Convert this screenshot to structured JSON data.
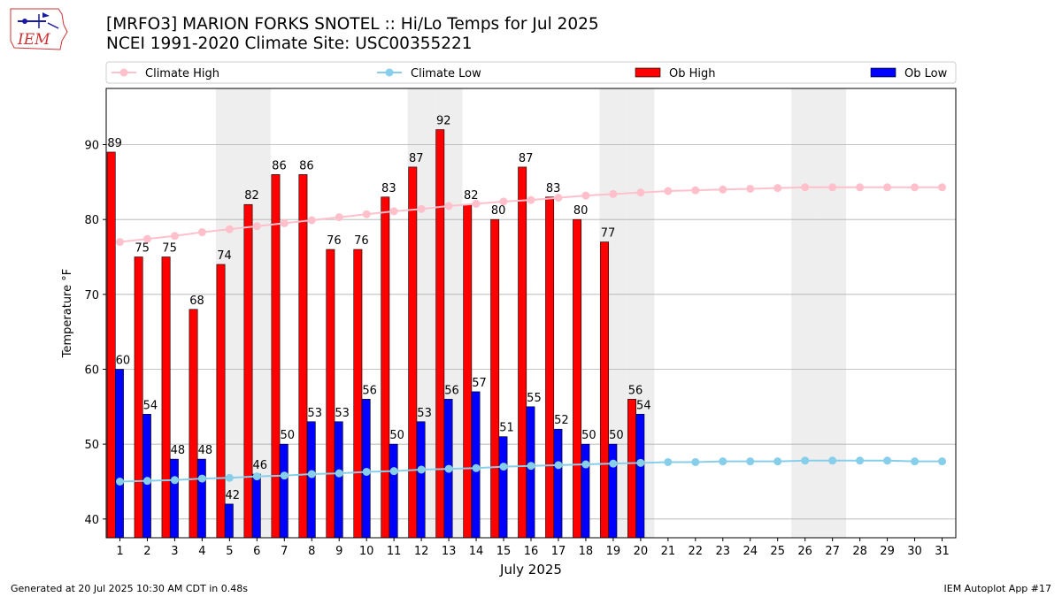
{
  "header": {
    "title_line1": "[MRFO3] MARION FORKS SNOTEL :: Hi/Lo Temps for Jul 2025",
    "title_line2": "NCEI 1991-2020 Climate Site: USC00355221",
    "logo_text": "IEM"
  },
  "footer": {
    "generated": "Generated at 20 Jul 2025 10:30 AM CDT in 0.48s",
    "app": "IEM Autoplot App #17"
  },
  "colors": {
    "ob_high": "#ff0000",
    "ob_low": "#0000ff",
    "climate_high": "#ffc0cb",
    "climate_low": "#87ceeb",
    "weekend_shade": "#eeeeee",
    "grid": "#b0b0b0"
  },
  "chart_data": {
    "type": "bar",
    "xlabel": "July 2025",
    "ylabel": "Temperature °F",
    "ylim": [
      37.5,
      97.5
    ],
    "yticks": [
      40,
      50,
      60,
      70,
      80,
      90
    ],
    "grid": "horizontal",
    "legend_position": "top",
    "shaded_days": [
      5,
      6,
      12,
      13,
      19,
      20,
      26,
      27
    ],
    "days": [
      1,
      2,
      3,
      4,
      5,
      6,
      7,
      8,
      9,
      10,
      11,
      12,
      13,
      14,
      15,
      16,
      17,
      18,
      19,
      20,
      21,
      22,
      23,
      24,
      25,
      26,
      27,
      28,
      29,
      30,
      31
    ],
    "series": [
      {
        "name": "Climate High",
        "kind": "line",
        "values": [
          77.0,
          77.4,
          77.8,
          78.3,
          78.7,
          79.1,
          79.5,
          79.9,
          80.3,
          80.7,
          81.1,
          81.4,
          81.8,
          82.1,
          82.4,
          82.6,
          82.9,
          83.2,
          83.4,
          83.6,
          83.8,
          83.9,
          84.0,
          84.1,
          84.2,
          84.3,
          84.3,
          84.3,
          84.3,
          84.3,
          84.3
        ]
      },
      {
        "name": "Climate Low",
        "kind": "line",
        "values": [
          45.0,
          45.1,
          45.2,
          45.4,
          45.5,
          45.7,
          45.8,
          46.0,
          46.1,
          46.3,
          46.4,
          46.6,
          46.7,
          46.8,
          47.0,
          47.1,
          47.2,
          47.3,
          47.4,
          47.5,
          47.6,
          47.6,
          47.7,
          47.7,
          47.7,
          47.8,
          47.8,
          47.8,
          47.8,
          47.7,
          47.7
        ]
      },
      {
        "name": "Ob High",
        "kind": "bar",
        "values": [
          89,
          75,
          75,
          68,
          74,
          82,
          86,
          86,
          76,
          76,
          83,
          87,
          92,
          82,
          80,
          87,
          83,
          80,
          77,
          56
        ],
        "labels": [
          "89",
          "75",
          "75",
          "68",
          "74",
          "82",
          "86",
          "86",
          "76",
          "76",
          "83",
          "87",
          "92",
          "82",
          "80",
          "87",
          "83",
          "80",
          "77",
          "56"
        ]
      },
      {
        "name": "Ob Low",
        "kind": "bar",
        "values": [
          60,
          54,
          48,
          48,
          42,
          46,
          50,
          53,
          53,
          56,
          50,
          53,
          56,
          57,
          51,
          55,
          52,
          50,
          50,
          54
        ],
        "labels": [
          "60",
          "54",
          "48",
          "48",
          "42",
          "46",
          "50",
          "53",
          "53",
          "56",
          "50",
          "53",
          "56",
          "57",
          "51",
          "55",
          "52",
          "50",
          "50",
          "54"
        ]
      }
    ]
  }
}
